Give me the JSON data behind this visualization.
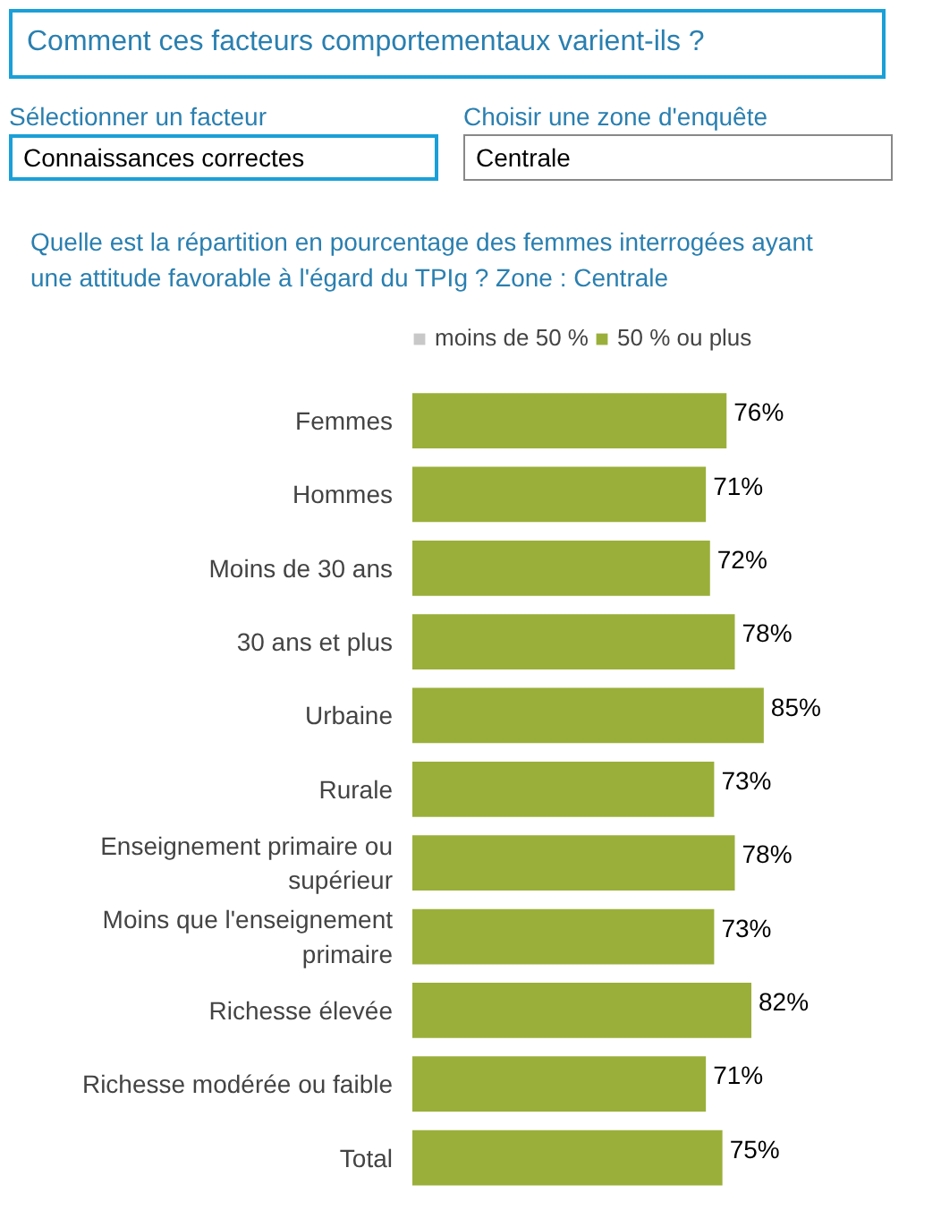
{
  "chart_data": {
    "type": "bar",
    "orientation": "horizontal",
    "stacked": true,
    "title": "Quelle est la répartition en pourcentage des femmes interrogées ayant une attitude favorable à l'égard du TPIg ? Zone : Centrale",
    "annotations": [
      "Comment ces facteurs comportementaux varient-ils ?",
      "Sélectionner un facteur",
      "Connaissances correctes",
      "Choisir une zone d'enquête",
      "Centrale"
    ],
    "categories": [
      "Femmes",
      "Hommes",
      "Moins de 30 ans",
      "30 ans et plus",
      "Urbaine",
      "Rurale",
      "Enseignement primaire ou\nsupérieur",
      "Moins que l'enseignement\nprimaire",
      "Richesse élevée",
      "Richesse modérée ou faible",
      "Total"
    ],
    "series": [
      {
        "name": "moins de 50 %",
        "color": "#c8c8c8",
        "values": [
          null,
          null,
          null,
          null,
          null,
          null,
          null,
          null,
          null,
          null,
          null
        ]
      },
      {
        "name": "50 % ou plus",
        "color": "#9aaf3a",
        "values": [
          76,
          71,
          72,
          78,
          85,
          73,
          78,
          73,
          82,
          71,
          75
        ],
        "value_labels": [
          "76%",
          "71%",
          "72%",
          "78%",
          "85%",
          "73%",
          "78%",
          "73%",
          "82%",
          "71%",
          "75%"
        ]
      }
    ],
    "legend": "top left",
    "grid": false,
    "tick_labels": "y"
  }
}
